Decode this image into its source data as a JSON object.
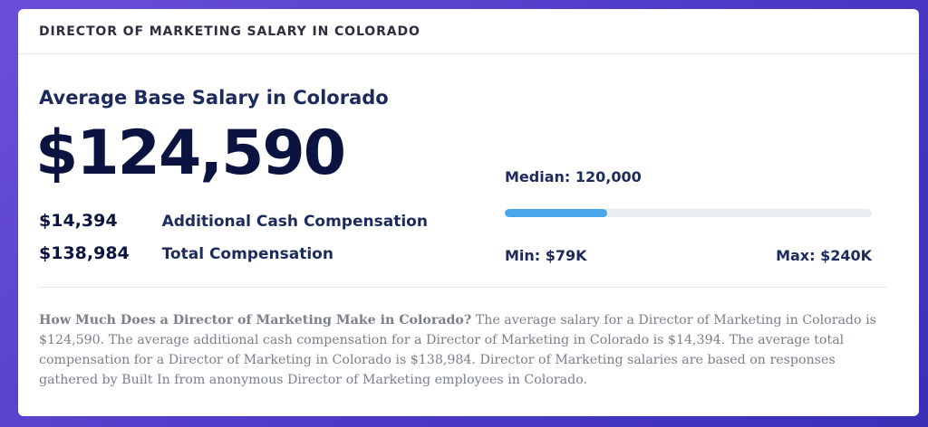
{
  "header": {
    "title": "DIRECTOR OF MARKETING SALARY IN COLORADO"
  },
  "salary": {
    "subtitle": "Average Base Salary in Colorado",
    "average_base": "$124,590",
    "additional_cash_amount": "$14,394",
    "additional_cash_label": "Additional Cash Compensation",
    "total_amount": "$138,984",
    "total_label": "Total Compensation"
  },
  "range": {
    "median_label": "Median: 120,000",
    "min_label": "Min: $79K",
    "max_label": "Max: $240K",
    "fill_fraction": 0.28,
    "fill_color": "#4aa8ea",
    "track_color": "#e9ecf1"
  },
  "description": {
    "question": "How Much Does a Director of Marketing Make in Colorado?",
    "body": " The average salary for a Director of Marketing in Colorado is $124,590. The average additional cash compensation for a Director of Marketing in Colorado is $14,394. The average total compensation for a Director of Marketing in Colorado is $138,984. Director of Marketing salaries are based on responses gathered by Built In from anonymous Director of Marketing employees in Colorado."
  },
  "colors": {
    "background_gradient_start": "#6b4fd8",
    "background_gradient_end": "#3b2fb8",
    "heading_navy": "#1d2b5c",
    "salary_navy": "#0b1440",
    "body_gray": "#7a7f89"
  }
}
